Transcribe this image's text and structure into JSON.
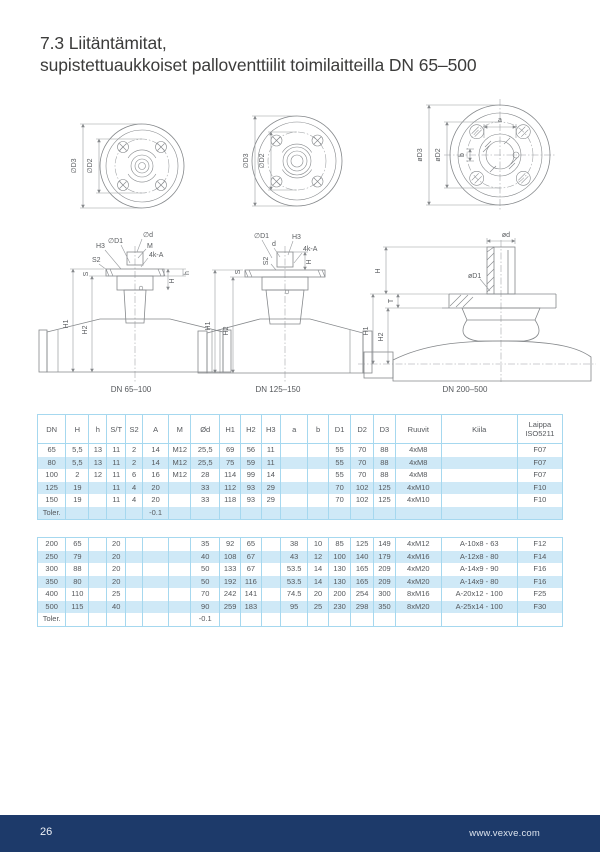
{
  "header": {
    "title_line1": "7.3 Liitäntämitat,",
    "title_line2": "supistettuaukkoiset palloventtiilit toimilaitteilla DN 65–500"
  },
  "drawings": {
    "captions": [
      "DN 65–100",
      "DN 125–150",
      "DN 200–500"
    ],
    "d1": {
      "top": {
        "D3": "∅D3",
        "D2": "∅D2"
      },
      "front": {
        "H3": "H3",
        "D1": "∅D1",
        "M": "M",
        "d": "∅d",
        "S2": "S2",
        "kA": "4k-A",
        "S": "S",
        "h": "h",
        "H": "H",
        "H1": "H1",
        "H2": "H2"
      }
    },
    "d2": {
      "top": {
        "D3": "∅D3",
        "D2": "∅D2"
      },
      "front": {
        "D1": "∅D1",
        "d": "d",
        "H3": "H3",
        "kA": "4k-A",
        "S2": "S2",
        "S": "S",
        "H": "H",
        "H1": "H1",
        "H2": "H2"
      }
    },
    "d3": {
      "top": {
        "D3": "øD3",
        "D2": "øD2",
        "a": "a",
        "b": "b"
      },
      "front": {
        "d": "ød",
        "D1": "øD1",
        "H": "H",
        "T": "T",
        "H1": "H1",
        "H2": "H2"
      }
    }
  },
  "table": {
    "headers": [
      "DN",
      "H",
      "h",
      "S/T",
      "S2",
      "A",
      "M",
      "Ød",
      "H1",
      "H2",
      "H3",
      "a",
      "b",
      "D1",
      "D2",
      "D3",
      "Ruuvit",
      "Kiila",
      "Laippa\nISO5211"
    ],
    "rows_small": [
      [
        "65",
        "5,5",
        "13",
        "11",
        "2",
        "14",
        "M12",
        "25,5",
        "69",
        "56",
        "11",
        "",
        "",
        "55",
        "70",
        "88",
        "4xM8",
        "",
        "F07"
      ],
      [
        "80",
        "5,5",
        "13",
        "11",
        "2",
        "14",
        "M12",
        "25,5",
        "75",
        "59",
        "11",
        "",
        "",
        "55",
        "70",
        "88",
        "4xM8",
        "",
        "F07"
      ],
      [
        "100",
        "2",
        "12",
        "11",
        "6",
        "16",
        "M12",
        "28",
        "114",
        "99",
        "14",
        "",
        "",
        "55",
        "70",
        "88",
        "4xM8",
        "",
        "F07"
      ],
      [
        "125",
        "19",
        "",
        "11",
        "4",
        "20",
        "",
        "33",
        "112",
        "93",
        "29",
        "",
        "",
        "70",
        "102",
        "125",
        "4xM10",
        "",
        "F10"
      ],
      [
        "150",
        "19",
        "",
        "11",
        "4",
        "20",
        "",
        "33",
        "118",
        "93",
        "29",
        "",
        "",
        "70",
        "102",
        "125",
        "4xM10",
        "",
        "F10"
      ],
      [
        "Toler.",
        "",
        "",
        "",
        "",
        "-0.1",
        "",
        "",
        "",
        "",
        "",
        "",
        "",
        "",
        "",
        "",
        "",
        "",
        ""
      ]
    ],
    "rows_large": [
      [
        "200",
        "65",
        "",
        "20",
        "",
        "",
        "",
        "35",
        "92",
        "65",
        "",
        "38",
        "10",
        "85",
        "125",
        "149",
        "4xM12",
        "A-10x8 - 63",
        "F12"
      ],
      [
        "250",
        "79",
        "",
        "20",
        "",
        "",
        "",
        "40",
        "108",
        "67",
        "",
        "43",
        "12",
        "100",
        "140",
        "179",
        "4xM16",
        "A-12x8 - 80",
        "F14"
      ],
      [
        "300",
        "88",
        "",
        "20",
        "",
        "",
        "",
        "50",
        "133",
        "67",
        "",
        "53.5",
        "14",
        "130",
        "165",
        "209",
        "4xM20",
        "A-14x9 - 90",
        "F16"
      ],
      [
        "350",
        "80",
        "",
        "20",
        "",
        "",
        "",
        "50",
        "192",
        "116",
        "",
        "53.5",
        "14",
        "130",
        "165",
        "209",
        "4xM20",
        "A-14x9 - 80",
        "F16"
      ],
      [
        "400",
        "110",
        "",
        "25",
        "",
        "",
        "",
        "70",
        "242",
        "141",
        "",
        "74.5",
        "20",
        "200",
        "254",
        "300",
        "8xM16",
        "A-20x12 - 100",
        "F25"
      ],
      [
        "500",
        "115",
        "",
        "40",
        "",
        "",
        "",
        "90",
        "259",
        "183",
        "",
        "95",
        "25",
        "230",
        "298",
        "350",
        "8xM20",
        "A-25x14 - 100",
        "F30"
      ],
      [
        "Toler.",
        "",
        "",
        "",
        "",
        "",
        "",
        "-0.1",
        "",
        "",
        "",
        "",
        "",
        "",
        "",
        "",
        "",
        "",
        ""
      ]
    ]
  },
  "footer": {
    "page_number": "26",
    "website": "www.vexve.com"
  },
  "colors": {
    "footer_navy": "#1d3a6a",
    "row_alt_blue": "#cfe9f7",
    "table_border_blue": "#a6d8ef"
  }
}
